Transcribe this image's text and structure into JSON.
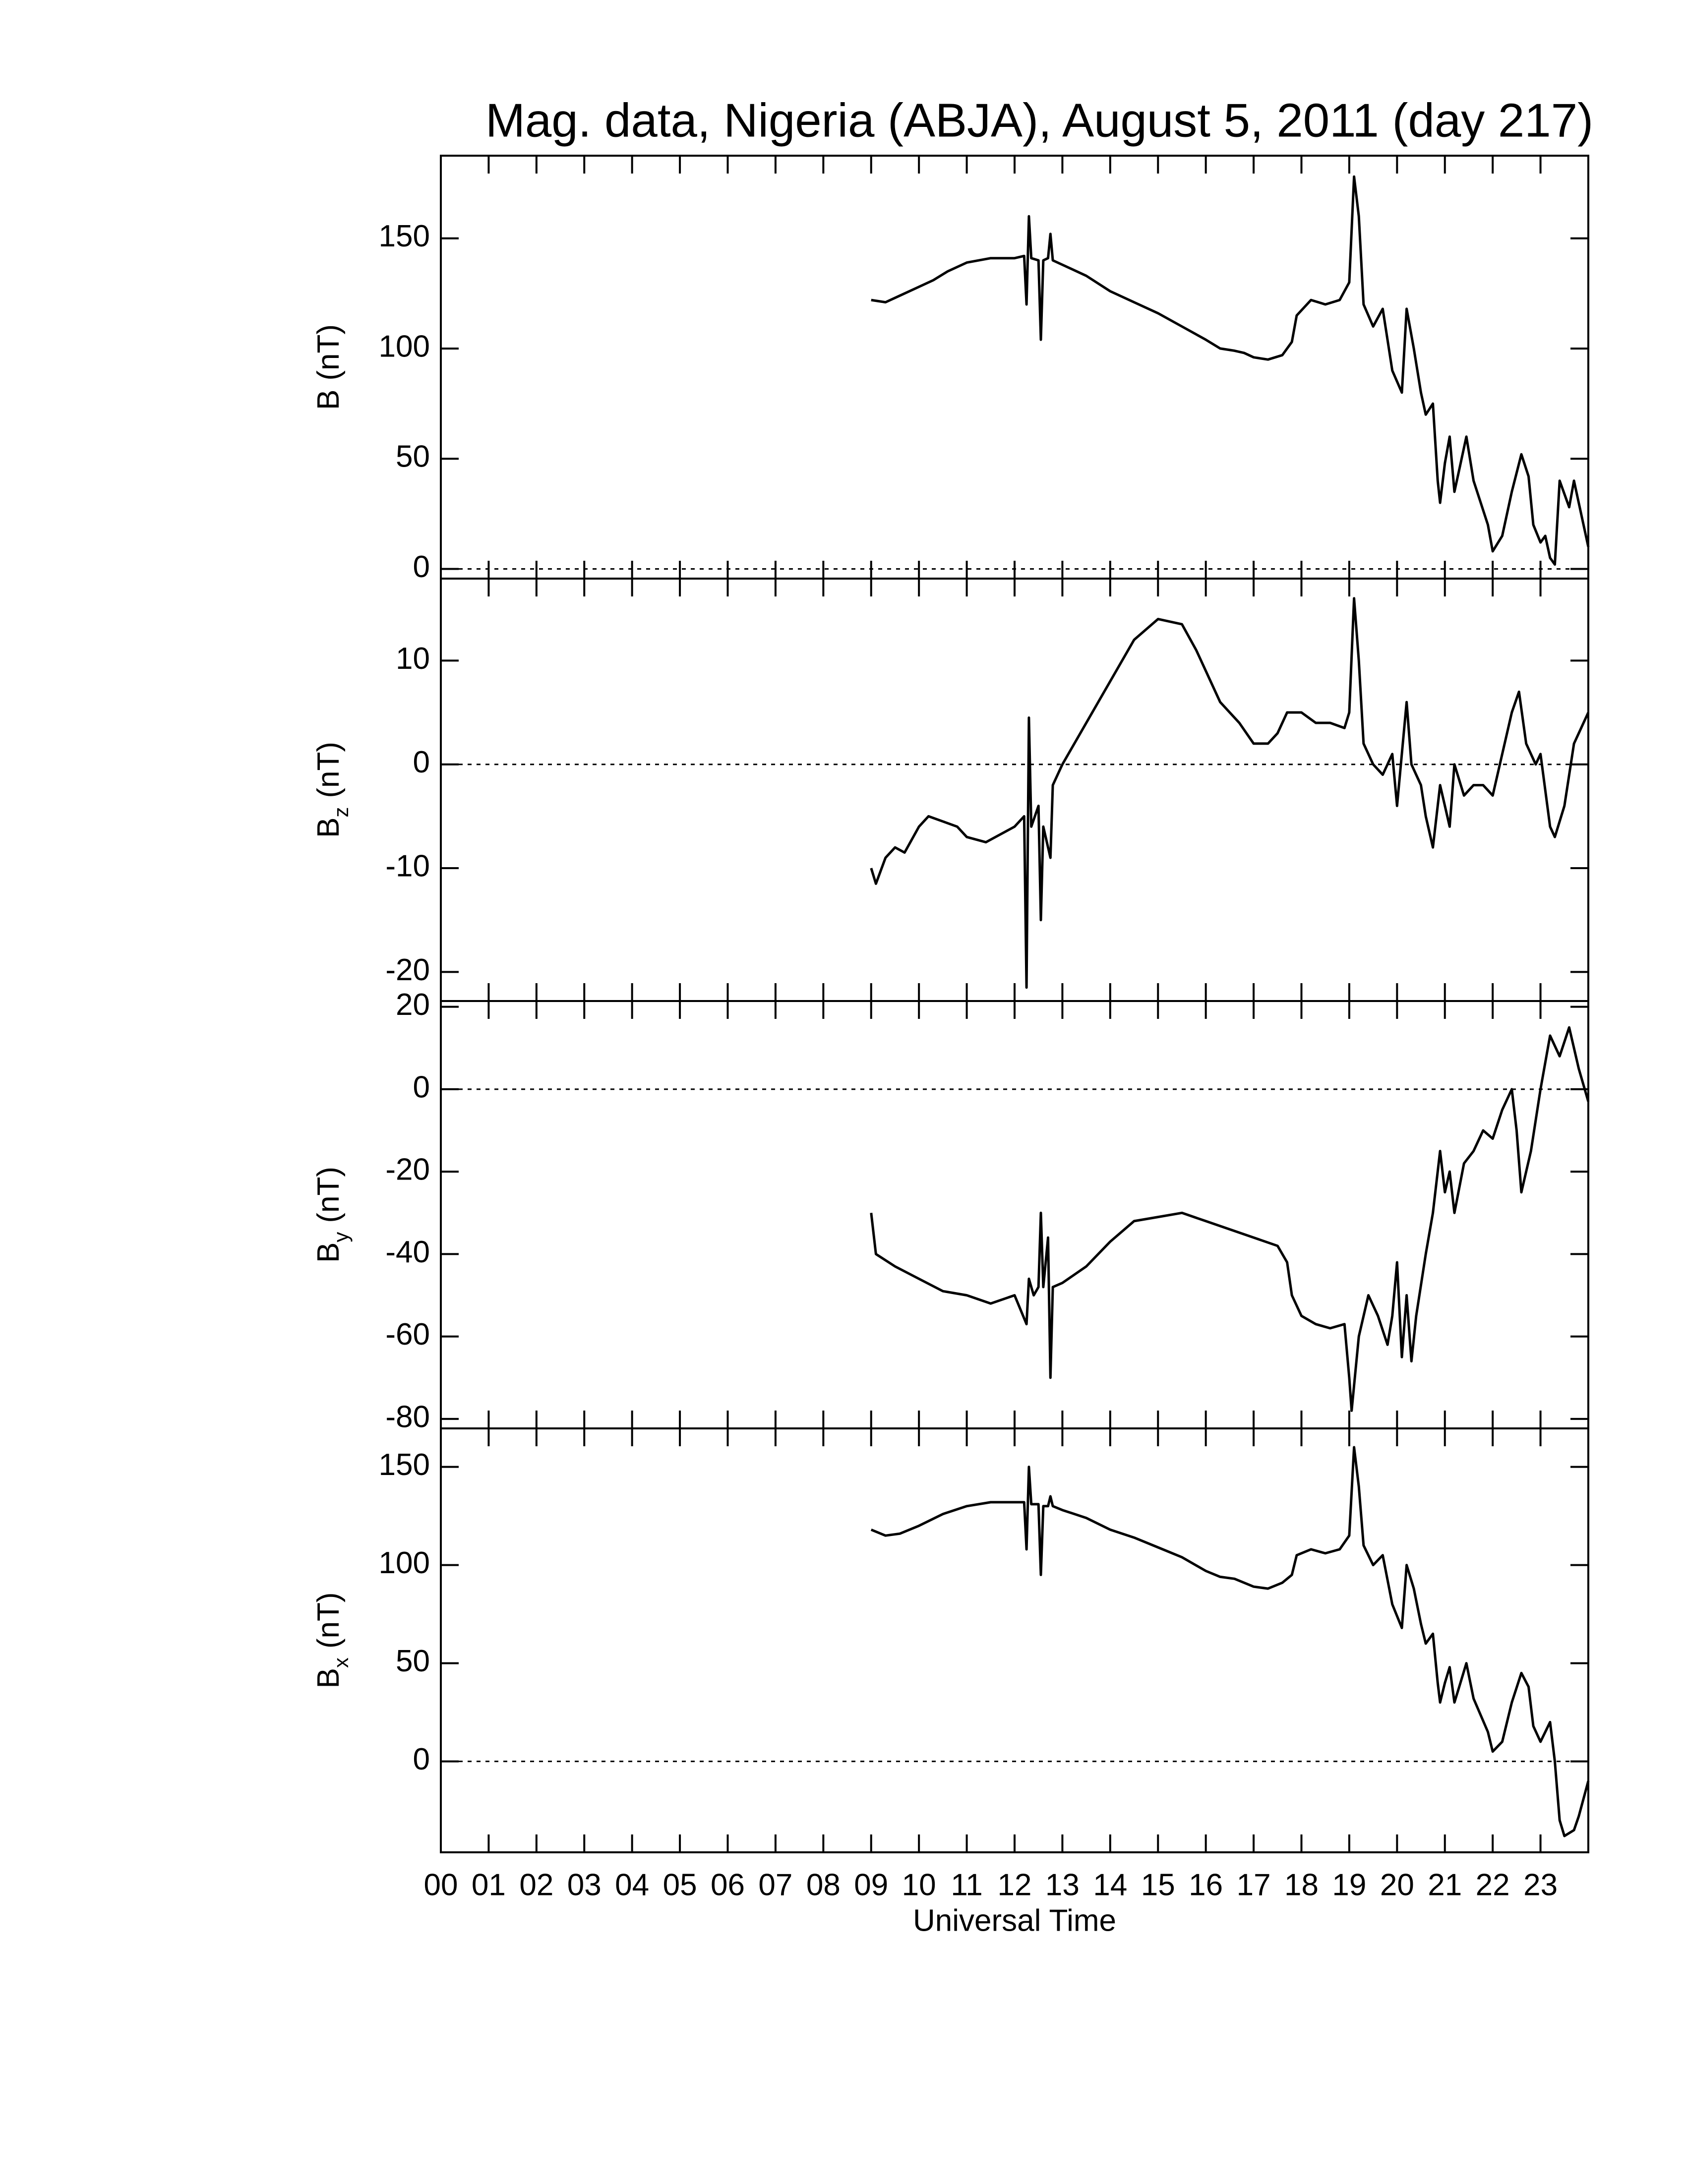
{
  "chart_data": [
    {
      "type": "line",
      "title": "Mag. data, Nigeria (ABJA), August 5, 2011 (day 217)",
      "ylabel": {
        "symbol": "B",
        "unit": "(nT)"
      },
      "color": "#000000",
      "zero_line": true,
      "ylim": [
        -4.4,
        187.5
      ],
      "yticks": [
        0,
        50,
        100,
        150
      ],
      "x": [
        9.0,
        9.3,
        9.6,
        10.0,
        10.3,
        10.6,
        11.0,
        11.5,
        12.0,
        12.2,
        12.25,
        12.3,
        12.35,
        12.5,
        12.55,
        12.6,
        12.7,
        12.75,
        12.8,
        13.0,
        13.5,
        14.0,
        14.5,
        15.0,
        15.5,
        16.0,
        16.3,
        16.6,
        16.8,
        17.0,
        17.3,
        17.6,
        17.8,
        17.9,
        18.2,
        18.5,
        18.8,
        19.0,
        19.1,
        19.2,
        19.3,
        19.5,
        19.7,
        19.9,
        20.1,
        20.2,
        20.35,
        20.5,
        20.6,
        20.75,
        20.85,
        20.9,
        21.0,
        21.1,
        21.2,
        21.3,
        21.45,
        21.6,
        21.9,
        22.0,
        22.2,
        22.4,
        22.6,
        22.75,
        22.85,
        23.0,
        23.1,
        23.2,
        23.3,
        23.4,
        23.6,
        23.7,
        23.8,
        24.0
      ],
      "values": [
        122,
        121,
        124,
        128,
        131,
        135,
        139,
        141,
        141,
        142,
        120,
        160,
        141,
        140,
        104,
        140,
        141,
        152,
        140,
        138,
        133,
        126,
        121,
        116,
        110,
        104,
        100,
        99,
        98,
        96,
        95,
        97,
        103,
        115,
        122,
        120,
        122,
        130,
        178,
        160,
        120,
        110,
        118,
        90,
        80,
        118,
        100,
        80,
        70,
        75,
        40,
        30,
        48,
        60,
        35,
        45,
        60,
        40,
        20,
        8,
        15,
        35,
        52,
        42,
        20,
        12,
        15,
        5,
        2,
        40,
        28,
        40,
        30,
        10
      ]
    },
    {
      "type": "line",
      "ylabel": {
        "symbol": "B",
        "subscript": "z",
        "unit": "(nT)"
      },
      "color": "#000000",
      "zero_line": true,
      "ylim": [
        -22.8,
        17.9
      ],
      "yticks": [
        -20,
        -10,
        0,
        10
      ],
      "x": [
        9.0,
        9.1,
        9.3,
        9.5,
        9.7,
        10.0,
        10.2,
        10.5,
        10.8,
        11.0,
        11.4,
        11.8,
        12.0,
        12.2,
        12.25,
        12.3,
        12.35,
        12.5,
        12.55,
        12.6,
        12.75,
        12.8,
        13.0,
        13.5,
        14.0,
        14.5,
        15.0,
        15.5,
        15.8,
        16.0,
        16.3,
        16.7,
        17.0,
        17.3,
        17.5,
        17.7,
        18.0,
        18.3,
        18.6,
        18.9,
        19.0,
        19.1,
        19.2,
        19.3,
        19.5,
        19.7,
        19.9,
        20.0,
        20.2,
        20.3,
        20.5,
        20.6,
        20.75,
        20.9,
        21.0,
        21.1,
        21.2,
        21.4,
        21.6,
        21.8,
        22.0,
        22.2,
        22.4,
        22.55,
        22.7,
        22.9,
        23.0,
        23.2,
        23.3,
        23.5,
        23.7,
        24.0
      ],
      "values": [
        -10,
        -11.5,
        -9,
        -8,
        -8.5,
        -6,
        -5,
        -5.5,
        -6,
        -7,
        -7.5,
        -6.5,
        -6,
        -5,
        -21.5,
        4.5,
        -6,
        -4,
        -15,
        -6,
        -9,
        -2,
        0,
        4,
        8,
        12,
        14,
        13.5,
        11,
        9,
        6,
        4,
        2,
        2,
        3,
        5,
        5,
        4,
        4,
        3.5,
        5,
        16,
        10,
        2,
        0,
        -1,
        1,
        -4,
        6,
        0,
        -2,
        -5,
        -8,
        -2,
        -4,
        -6,
        0,
        -3,
        -2,
        -2,
        -3,
        1,
        5,
        7,
        2,
        0,
        1,
        -6,
        -7,
        -4,
        2,
        5
      ]
    },
    {
      "type": "line",
      "ylabel": {
        "symbol": "B",
        "subscript": "y",
        "unit": "(nT)"
      },
      "color": "#000000",
      "zero_line": true,
      "ylim": [
        -82.3,
        21.4
      ],
      "yticks": [
        -80,
        -60,
        -40,
        -20,
        0,
        20
      ],
      "x": [
        9.0,
        9.1,
        9.5,
        10.0,
        10.5,
        11.0,
        11.5,
        12.0,
        12.25,
        12.3,
        12.4,
        12.5,
        12.55,
        12.6,
        12.7,
        12.75,
        12.8,
        13.0,
        13.5,
        14.0,
        14.5,
        15.0,
        15.5,
        16.0,
        16.5,
        17.0,
        17.5,
        17.7,
        17.8,
        18.0,
        18.3,
        18.6,
        18.9,
        19.0,
        19.05,
        19.2,
        19.4,
        19.6,
        19.8,
        19.9,
        20.0,
        20.1,
        20.2,
        20.3,
        20.4,
        20.6,
        20.75,
        20.9,
        21.0,
        21.1,
        21.2,
        21.4,
        21.6,
        21.8,
        22.0,
        22.2,
        22.4,
        22.5,
        22.6,
        22.8,
        23.0,
        23.2,
        23.4,
        23.6,
        23.8,
        24.0
      ],
      "values": [
        -30,
        -40,
        -43,
        -46,
        -49,
        -50,
        -52,
        -50,
        -57,
        -46,
        -50,
        -48,
        -30,
        -48,
        -36,
        -70,
        -48,
        -47,
        -43,
        -37,
        -32,
        -31,
        -30,
        -32,
        -34,
        -36,
        -38,
        -42,
        -50,
        -55,
        -57,
        -58,
        -57,
        -70,
        -78,
        -60,
        -50,
        -55,
        -62,
        -55,
        -42,
        -65,
        -50,
        -66,
        -55,
        -40,
        -30,
        -15,
        -25,
        -20,
        -30,
        -18,
        -15,
        -10,
        -12,
        -5,
        0,
        -10,
        -25,
        -15,
        0,
        13,
        8,
        15,
        5,
        -3
      ]
    },
    {
      "type": "line",
      "ylabel": {
        "symbol": "B",
        "subscript": "x",
        "unit": "(nT)"
      },
      "color": "#000000",
      "zero_line": true,
      "ylim": [
        -46.3,
        169.6
      ],
      "yticks": [
        0,
        50,
        100,
        150
      ],
      "xlabel": "Universal Time",
      "xlim": [
        0,
        24
      ],
      "xticks": [
        {
          "value": 0,
          "label": "00"
        },
        {
          "value": 1,
          "label": "01"
        },
        {
          "value": 2,
          "label": "02"
        },
        {
          "value": 3,
          "label": "03"
        },
        {
          "value": 4,
          "label": "04"
        },
        {
          "value": 5,
          "label": "05"
        },
        {
          "value": 6,
          "label": "06"
        },
        {
          "value": 7,
          "label": "07"
        },
        {
          "value": 8,
          "label": "08"
        },
        {
          "value": 9,
          "label": "09"
        },
        10,
        11,
        12,
        13,
        14,
        15,
        16,
        17,
        18,
        19,
        20,
        21,
        22,
        23
      ],
      "x": [
        9.0,
        9.3,
        9.6,
        10.0,
        10.5,
        11.0,
        11.5,
        12.0,
        12.2,
        12.25,
        12.3,
        12.35,
        12.5,
        12.55,
        12.6,
        12.7,
        12.75,
        12.8,
        13.0,
        13.5,
        14.0,
        14.5,
        15.0,
        15.5,
        16.0,
        16.3,
        16.6,
        17.0,
        17.3,
        17.6,
        17.8,
        17.9,
        18.2,
        18.5,
        18.8,
        19.0,
        19.1,
        19.2,
        19.3,
        19.5,
        19.7,
        19.9,
        20.1,
        20.2,
        20.35,
        20.5,
        20.6,
        20.75,
        20.85,
        20.9,
        21.0,
        21.1,
        21.2,
        21.3,
        21.45,
        21.6,
        21.9,
        22.0,
        22.2,
        22.4,
        22.6,
        22.75,
        22.85,
        23.0,
        23.2,
        23.3,
        23.4,
        23.5,
        23.7,
        23.8,
        24.0
      ],
      "values": [
        118,
        115,
        116,
        120,
        126,
        130,
        132,
        132,
        132,
        108,
        150,
        131,
        131,
        95,
        130,
        130,
        135,
        130,
        128,
        124,
        118,
        114,
        109,
        104,
        97,
        94,
        93,
        89,
        88,
        91,
        95,
        105,
        108,
        106,
        108,
        115,
        160,
        140,
        110,
        100,
        105,
        80,
        68,
        100,
        88,
        70,
        60,
        65,
        40,
        30,
        40,
        48,
        30,
        38,
        50,
        32,
        15,
        5,
        10,
        30,
        45,
        38,
        18,
        10,
        20,
        0,
        -30,
        -38,
        -35,
        -28,
        -10
      ]
    }
  ]
}
